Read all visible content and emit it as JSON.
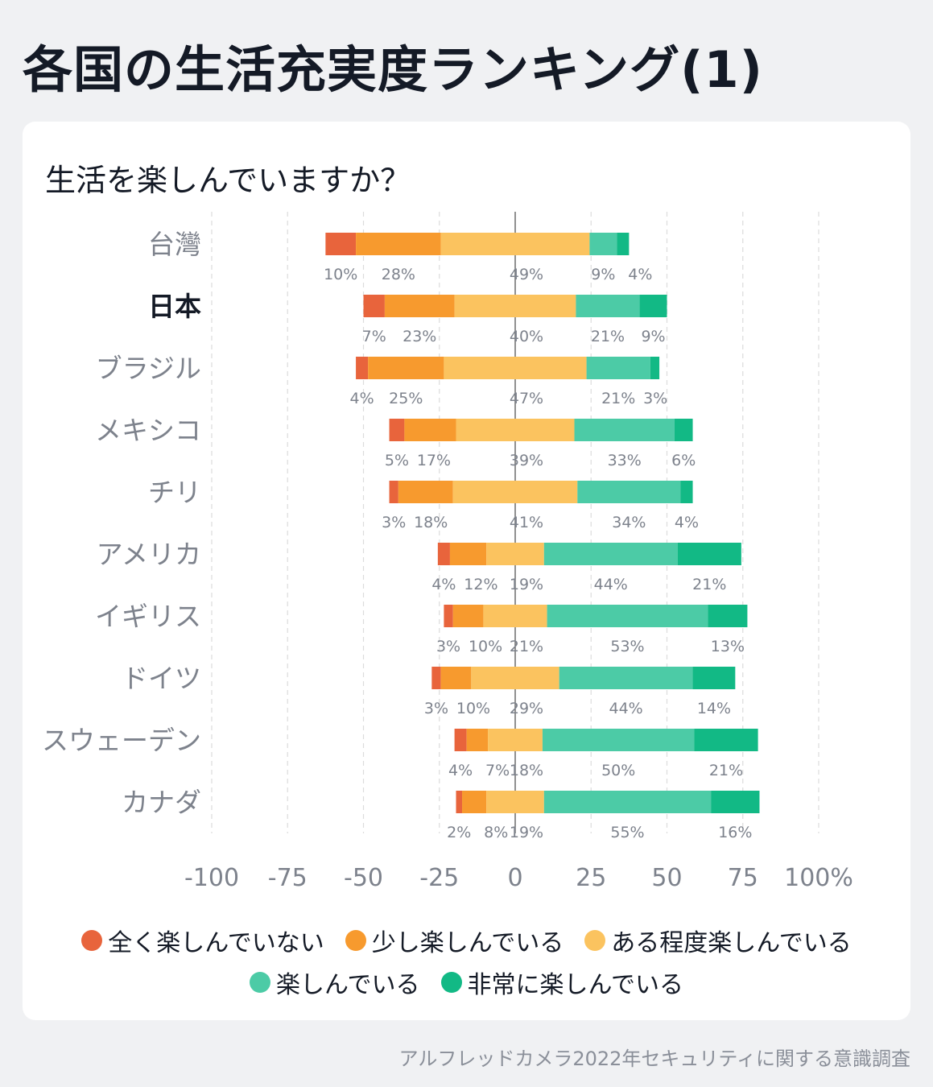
{
  "title": "各国の生活充実度ランキング(1)",
  "source": "アルフレッドカメラ2022年セキュリティに関する意識調査",
  "colors": {
    "not_at_all": "#e8643c",
    "a_little": "#f79a2e",
    "somewhat": "#fbc35f",
    "enjoying": "#4ccba6",
    "very_much": "#12b985",
    "label_gray": "#7d828c",
    "label_dark": "#141a26",
    "grid": "#dcdcdc"
  },
  "chart_data": {
    "type": "bar",
    "subtype": "diverging-stacked-horizontal",
    "title": "生活を楽しんでいますか？",
    "xlim": [
      -100,
      100
    ],
    "x_ticks": [
      "-100",
      "-75",
      "-50",
      "-25",
      "0",
      "25",
      "50",
      "75",
      "100%"
    ],
    "highlight_category": "日本",
    "categories": [
      "台灣",
      "日本",
      "ブラジル",
      "メキシコ",
      "チリ",
      "アメリカ",
      "イギリス",
      "ドイツ",
      "スウェーデン",
      "カナダ"
    ],
    "series": [
      {
        "name": "全く楽しんでいない",
        "color_key": "not_at_all",
        "values": [
          10,
          7,
          4,
          5,
          3,
          4,
          3,
          3,
          4,
          2
        ]
      },
      {
        "name": "少し楽しんでいる",
        "color_key": "a_little",
        "values": [
          28,
          23,
          25,
          17,
          18,
          12,
          10,
          10,
          7,
          8
        ]
      },
      {
        "name": "ある程度楽しんでいる",
        "color_key": "somewhat",
        "values": [
          49,
          40,
          47,
          39,
          41,
          19,
          21,
          29,
          18,
          19
        ]
      },
      {
        "name": "楽しんでいる",
        "color_key": "enjoying",
        "values": [
          9,
          21,
          21,
          33,
          34,
          44,
          53,
          44,
          50,
          55
        ]
      },
      {
        "name": "非常に楽しんでいる",
        "color_key": "very_much",
        "values": [
          4,
          9,
          3,
          6,
          4,
          21,
          13,
          14,
          21,
          16
        ]
      }
    ],
    "value_labels": [
      [
        "10%",
        "28%",
        "49%",
        "9%",
        "4%"
      ],
      [
        "7%",
        "23%",
        "40%",
        "21%",
        "9%"
      ],
      [
        "4%",
        "25%",
        "47%",
        "21%",
        "3%"
      ],
      [
        "5%",
        "17%",
        "39%",
        "33%",
        "6%"
      ],
      [
        "3%",
        "18%",
        "41%",
        "34%",
        "4%"
      ],
      [
        "4%",
        "12%",
        "19%",
        "44%",
        "21%"
      ],
      [
        "3%",
        "10%",
        "21%",
        "53%",
        "13%"
      ],
      [
        "3%",
        "10%",
        "29%",
        "44%",
        "14%"
      ],
      [
        "4%",
        "7%",
        "18%",
        "50%",
        "21%"
      ],
      [
        "2%",
        "8%",
        "19%",
        "55%",
        "16%"
      ]
    ]
  }
}
